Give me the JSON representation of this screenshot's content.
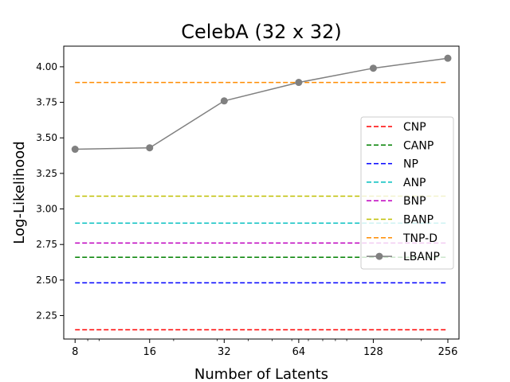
{
  "chart_data": {
    "type": "line",
    "title": "CelebA (32 x 32)",
    "xlabel": "Number of Latents",
    "ylabel": "Log-Likelihood",
    "x_scale": "log2",
    "x": [
      8,
      16,
      32,
      64,
      128,
      256
    ],
    "x_tick_labels": [
      "8",
      "16",
      "32",
      "64",
      "128",
      "256"
    ],
    "xlim": [
      7.2,
      284
    ],
    "ylim": [
      2.085,
      4.145
    ],
    "y_ticks": [
      2.25,
      2.5,
      2.75,
      3.0,
      3.25,
      3.5,
      3.75,
      4.0
    ],
    "y_tick_labels": [
      "2.25",
      "2.50",
      "2.75",
      "3.00",
      "3.25",
      "3.50",
      "3.75",
      "4.00"
    ],
    "grid": false,
    "legend_position": "center-right",
    "series": [
      {
        "name": "CNP",
        "style": "dashed",
        "color": "#ff0000",
        "values": [
          2.15,
          2.15,
          2.15,
          2.15,
          2.15,
          2.15
        ]
      },
      {
        "name": "CANP",
        "style": "dashed",
        "color": "#008000",
        "values": [
          2.66,
          2.66,
          2.66,
          2.66,
          2.66,
          2.66
        ]
      },
      {
        "name": "NP",
        "style": "dashed",
        "color": "#0000ff",
        "values": [
          2.48,
          2.48,
          2.48,
          2.48,
          2.48,
          2.48
        ]
      },
      {
        "name": "ANP",
        "style": "dashed",
        "color": "#00bfbf",
        "values": [
          2.9,
          2.9,
          2.9,
          2.9,
          2.9,
          2.9
        ]
      },
      {
        "name": "BNP",
        "style": "dashed",
        "color": "#bf00bf",
        "values": [
          2.76,
          2.76,
          2.76,
          2.76,
          2.76,
          2.76
        ]
      },
      {
        "name": "BANP",
        "style": "dashed",
        "color": "#bfbf00",
        "values": [
          3.09,
          3.09,
          3.09,
          3.09,
          3.09,
          3.09
        ]
      },
      {
        "name": "TNP-D",
        "style": "dashed",
        "color": "#ff8c00",
        "values": [
          3.89,
          3.89,
          3.89,
          3.89,
          3.89,
          3.89
        ]
      },
      {
        "name": "LBANP",
        "style": "solid-marker",
        "color": "#808080",
        "values": [
          3.42,
          3.43,
          3.76,
          3.89,
          3.99,
          4.06
        ]
      }
    ]
  }
}
